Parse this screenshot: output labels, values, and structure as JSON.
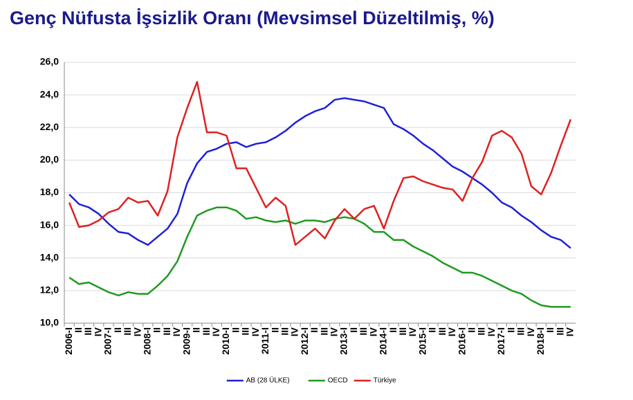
{
  "chart_data": {
    "type": "line",
    "title": "Genç Nüfusta İşsizlik Oranı (Mevsimsel Düzeltilmiş, %)",
    "categories": [
      "2006-I",
      "II",
      "III",
      "IV",
      "2007-I",
      "II",
      "III",
      "IV",
      "2008-I",
      "II",
      "III",
      "IV",
      "2009-I",
      "II",
      "III",
      "IV",
      "2010-I",
      "II",
      "III",
      "IV",
      "2011-I",
      "II",
      "III",
      "IV",
      "2012-I",
      "II",
      "III",
      "IV",
      "2013-I",
      "II",
      "III",
      "IV",
      "2014-I",
      "II",
      "III",
      "IV",
      "2015-I",
      "II",
      "III",
      "IV",
      "2016-I",
      "II",
      "III",
      "IV",
      "2017-I",
      "II",
      "III",
      "IV",
      "2018-I",
      "II",
      "III",
      "IV"
    ],
    "series": [
      {
        "name": "AB (28 ÜLKE)",
        "color": "#1f1fd6",
        "values": [
          17.9,
          17.3,
          17.1,
          16.7,
          16.1,
          15.6,
          15.5,
          15.1,
          14.8,
          15.3,
          15.8,
          16.7,
          18.6,
          19.8,
          20.5,
          20.7,
          21.0,
          21.1,
          20.8,
          21.0,
          21.1,
          21.4,
          21.8,
          22.3,
          22.7,
          23.0,
          23.2,
          23.7,
          23.8,
          23.7,
          23.6,
          23.4,
          23.2,
          22.2,
          21.9,
          21.5,
          21.0,
          20.6,
          20.1,
          19.6,
          19.3,
          18.9,
          18.5,
          18.0,
          17.4,
          17.1,
          16.6,
          16.2,
          15.7,
          15.3,
          15.1,
          14.6
        ]
      },
      {
        "name": "OECD",
        "color": "#1f9a1f",
        "values": [
          12.8,
          12.4,
          12.5,
          12.2,
          11.9,
          11.7,
          11.9,
          11.8,
          11.8,
          12.3,
          12.9,
          13.8,
          15.3,
          16.6,
          16.9,
          17.1,
          17.1,
          16.9,
          16.4,
          16.5,
          16.3,
          16.2,
          16.3,
          16.1,
          16.3,
          16.3,
          16.2,
          16.4,
          16.5,
          16.4,
          16.1,
          15.6,
          15.6,
          15.1,
          15.1,
          14.7,
          14.4,
          14.1,
          13.7,
          13.4,
          13.1,
          13.1,
          12.9,
          12.6,
          12.3,
          12.0,
          11.8,
          11.4,
          11.1,
          11.0,
          11.0,
          11.0
        ]
      },
      {
        "name": "Türkiye",
        "color": "#e02020",
        "values": [
          17.4,
          15.9,
          16.0,
          16.3,
          16.8,
          17.0,
          17.7,
          17.4,
          17.5,
          16.6,
          18.1,
          21.4,
          23.2,
          24.8,
          21.7,
          21.7,
          21.5,
          19.5,
          19.5,
          18.3,
          17.1,
          17.7,
          17.2,
          14.8,
          15.3,
          15.8,
          15.2,
          16.3,
          17.0,
          16.4,
          17.0,
          17.2,
          15.8,
          17.5,
          18.9,
          19.0,
          18.7,
          18.5,
          18.3,
          18.2,
          17.5,
          18.9,
          19.9,
          21.5,
          21.8,
          21.4,
          20.4,
          18.4,
          17.9,
          19.2,
          20.9,
          22.5
        ]
      }
    ],
    "ylim": [
      10,
      26
    ],
    "yticks": [
      {
        "value": 10,
        "label": "10,0"
      },
      {
        "value": 12,
        "label": "12,0"
      },
      {
        "value": 14,
        "label": "14,0"
      },
      {
        "value": 16,
        "label": "16,0"
      },
      {
        "value": 18,
        "label": "18,0"
      },
      {
        "value": 20,
        "label": "20,0"
      },
      {
        "value": 22,
        "label": "22,0"
      },
      {
        "value": 24,
        "label": "24,0"
      },
      {
        "value": 26,
        "label": "26,0"
      }
    ],
    "grid": true,
    "legend": "bottom"
  }
}
